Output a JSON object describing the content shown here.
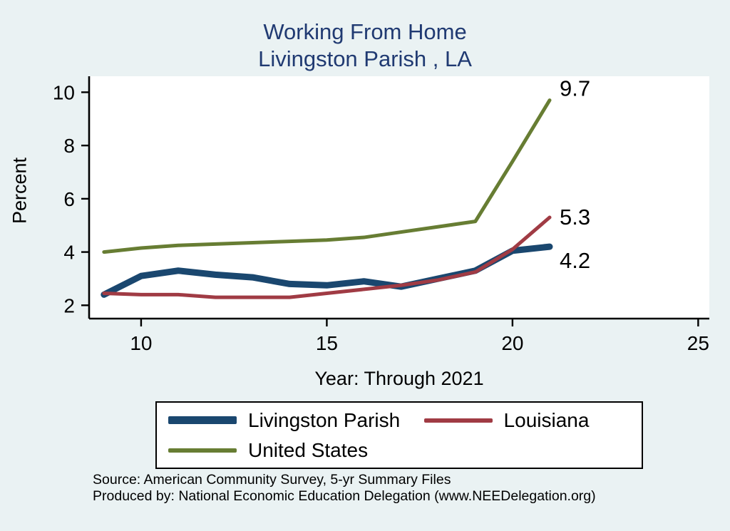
{
  "title": {
    "line1": "Working From Home",
    "line2": "Livingston Parish , LA"
  },
  "axes": {
    "y_label": "Percent",
    "x_caption": "Year: Through 2021"
  },
  "footer": {
    "source_line": "Source: American Community Survey, 5-yr Summary Files",
    "produced_line": "Produced by: National Economic Education Delegation (www.NEEDelegation.org)"
  },
  "colors": {
    "background": "#eaf2f3",
    "title": "#203a72",
    "parish": "#1a476f",
    "louisiana": "#a03b44",
    "us": "#677d33",
    "axis": "#000000"
  },
  "chart_data": {
    "type": "line",
    "title": "Working From Home — Livingston Parish , LA",
    "xlabel": "Year: Through 2021",
    "ylabel": "Percent",
    "x": [
      9,
      10,
      11,
      12,
      13,
      14,
      15,
      16,
      17,
      18,
      19,
      20,
      21
    ],
    "x_ticks": [
      10,
      15,
      20,
      25
    ],
    "y_ticks": [
      2,
      4,
      6,
      8,
      10
    ],
    "xlim": [
      8.6,
      25.3
    ],
    "ylim": [
      1.5,
      10.6
    ],
    "grid": false,
    "legend_position": "bottom",
    "series": [
      {
        "name": "Livingston Parish",
        "color_key": "parish",
        "width": 9,
        "values": [
          2.4,
          3.1,
          3.3,
          3.15,
          3.05,
          2.8,
          2.75,
          2.9,
          2.7,
          3.0,
          3.3,
          4.05,
          4.2
        ],
        "end_label": "4.2",
        "label_dy": 30
      },
      {
        "name": "Louisiana",
        "color_key": "louisiana",
        "width": 5,
        "values": [
          2.45,
          2.4,
          2.4,
          2.3,
          2.3,
          2.3,
          2.45,
          2.6,
          2.75,
          2.95,
          3.25,
          4.1,
          5.3
        ],
        "end_label": "5.3",
        "label_dy": 10
      },
      {
        "name": "United States",
        "color_key": "us",
        "width": 5,
        "values": [
          4.0,
          4.15,
          4.25,
          4.3,
          4.35,
          4.4,
          4.45,
          4.55,
          4.75,
          4.95,
          5.15,
          7.4,
          9.7
        ],
        "end_label": "9.7",
        "label_dy": -6
      }
    ],
    "legend": [
      {
        "label": "Livingston Parish",
        "color_key": "parish",
        "thick": true
      },
      {
        "label": "Louisiana",
        "color_key": "louisiana",
        "thick": false
      },
      {
        "label": "United States",
        "color_key": "us",
        "thick": false
      }
    ]
  }
}
